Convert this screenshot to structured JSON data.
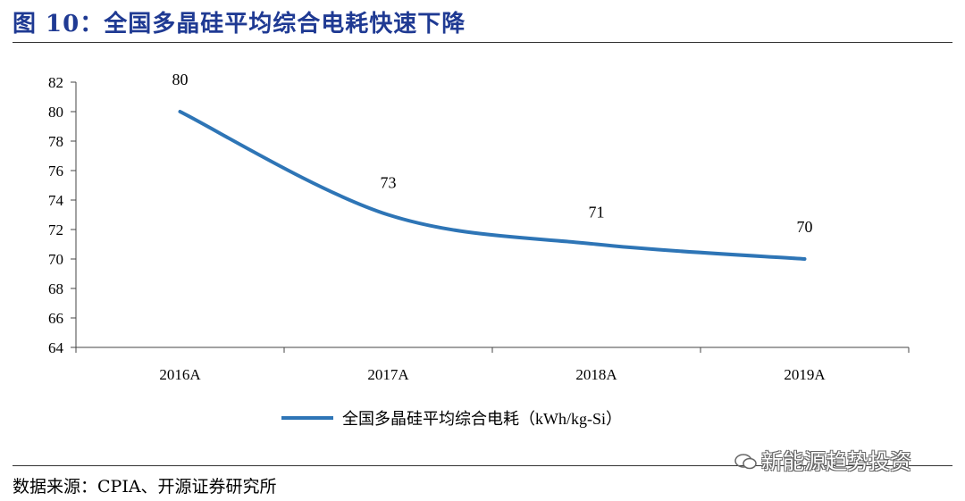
{
  "figure": {
    "title": "图 10：全国多晶硅平均综合电耗快速下降",
    "source": "数据来源：CPIA、开源证券研究所",
    "watermark": "新能源趋势投资"
  },
  "chart_data": {
    "type": "line",
    "x": [
      "2016A",
      "2017A",
      "2018A",
      "2019A"
    ],
    "series": [
      {
        "name": "全国多晶硅平均综合电耗（kWh/kg-Si）",
        "values": [
          80,
          73,
          71,
          70
        ],
        "color": "#2e75b6"
      }
    ],
    "ylim": [
      64,
      82
    ],
    "yticks": [
      64,
      66,
      68,
      70,
      72,
      74,
      76,
      78,
      80,
      82
    ],
    "data_labels": [
      "80",
      "73",
      "71",
      "70"
    ],
    "grid": false,
    "legend": "bottom-center",
    "smooth": true
  }
}
